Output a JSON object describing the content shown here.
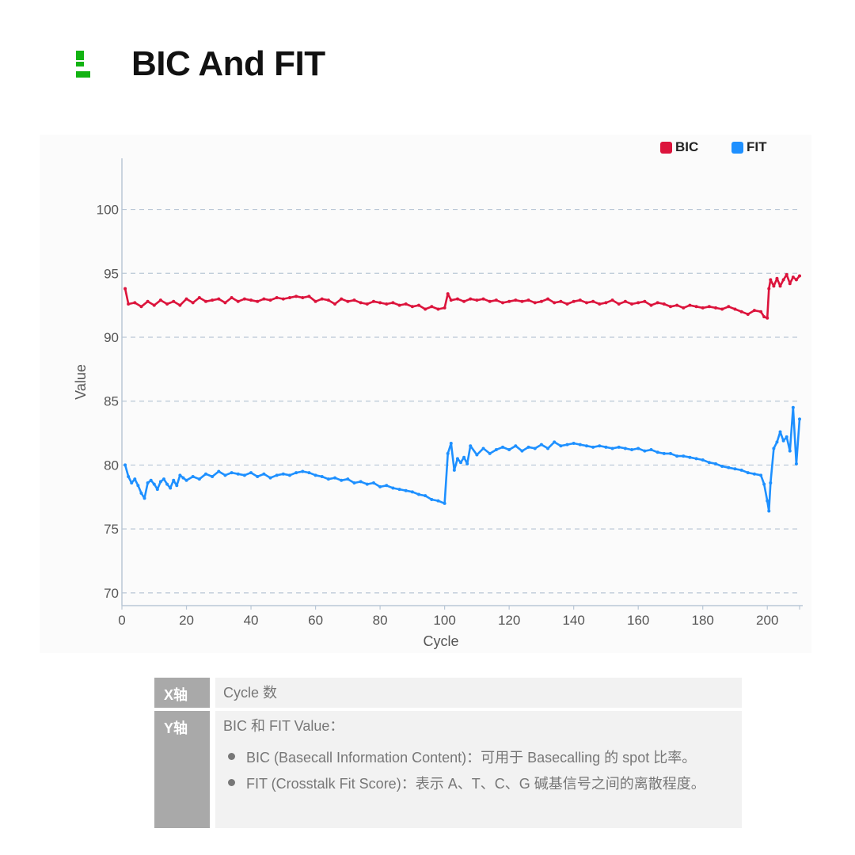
{
  "header": {
    "title": "BIC And FIT"
  },
  "legend": {
    "bic": {
      "label": "BIC",
      "color": "#dc143c"
    },
    "fit": {
      "label": "FIT",
      "color": "#1e90ff"
    }
  },
  "chart_data": {
    "type": "line",
    "xlabel": "Cycle",
    "ylabel": "Value",
    "xlim": [
      0,
      210
    ],
    "ylim": [
      69,
      104
    ],
    "xticks": [
      0,
      20,
      40,
      60,
      80,
      100,
      120,
      140,
      160,
      180,
      200
    ],
    "yticks": [
      70,
      75,
      80,
      85,
      90,
      95,
      100
    ],
    "grid": "horizontal dashed",
    "legend_position": "top-right",
    "series": [
      {
        "name": "BIC",
        "color": "#dc143c",
        "points": [
          [
            1,
            93.8
          ],
          [
            2,
            92.6
          ],
          [
            4,
            92.7
          ],
          [
            6,
            92.4
          ],
          [
            8,
            92.8
          ],
          [
            10,
            92.5
          ],
          [
            12,
            92.9
          ],
          [
            14,
            92.6
          ],
          [
            16,
            92.8
          ],
          [
            18,
            92.5
          ],
          [
            20,
            93.0
          ],
          [
            22,
            92.7
          ],
          [
            24,
            93.1
          ],
          [
            26,
            92.8
          ],
          [
            28,
            92.9
          ],
          [
            30,
            93.0
          ],
          [
            32,
            92.7
          ],
          [
            34,
            93.1
          ],
          [
            36,
            92.8
          ],
          [
            38,
            93.0
          ],
          [
            40,
            92.9
          ],
          [
            42,
            92.8
          ],
          [
            44,
            93.0
          ],
          [
            46,
            92.9
          ],
          [
            48,
            93.1
          ],
          [
            50,
            93.0
          ],
          [
            52,
            93.1
          ],
          [
            54,
            93.2
          ],
          [
            56,
            93.1
          ],
          [
            58,
            93.2
          ],
          [
            60,
            92.8
          ],
          [
            62,
            93.0
          ],
          [
            64,
            92.9
          ],
          [
            66,
            92.6
          ],
          [
            68,
            93.0
          ],
          [
            70,
            92.8
          ],
          [
            72,
            92.9
          ],
          [
            74,
            92.7
          ],
          [
            76,
            92.6
          ],
          [
            78,
            92.8
          ],
          [
            80,
            92.7
          ],
          [
            82,
            92.6
          ],
          [
            84,
            92.7
          ],
          [
            86,
            92.5
          ],
          [
            88,
            92.6
          ],
          [
            90,
            92.4
          ],
          [
            92,
            92.5
          ],
          [
            94,
            92.2
          ],
          [
            96,
            92.4
          ],
          [
            98,
            92.2
          ],
          [
            100,
            92.3
          ],
          [
            101,
            93.4
          ],
          [
            102,
            92.9
          ],
          [
            104,
            93.0
          ],
          [
            106,
            92.8
          ],
          [
            108,
            93.0
          ],
          [
            110,
            92.9
          ],
          [
            112,
            93.0
          ],
          [
            114,
            92.8
          ],
          [
            116,
            92.9
          ],
          [
            118,
            92.7
          ],
          [
            120,
            92.8
          ],
          [
            122,
            92.9
          ],
          [
            124,
            92.8
          ],
          [
            126,
            92.9
          ],
          [
            128,
            92.7
          ],
          [
            130,
            92.8
          ],
          [
            132,
            93.0
          ],
          [
            134,
            92.7
          ],
          [
            136,
            92.8
          ],
          [
            138,
            92.6
          ],
          [
            140,
            92.8
          ],
          [
            142,
            92.9
          ],
          [
            144,
            92.7
          ],
          [
            146,
            92.8
          ],
          [
            148,
            92.6
          ],
          [
            150,
            92.7
          ],
          [
            152,
            92.9
          ],
          [
            154,
            92.6
          ],
          [
            156,
            92.8
          ],
          [
            158,
            92.6
          ],
          [
            160,
            92.7
          ],
          [
            162,
            92.8
          ],
          [
            164,
            92.5
          ],
          [
            166,
            92.7
          ],
          [
            168,
            92.6
          ],
          [
            170,
            92.4
          ],
          [
            172,
            92.5
          ],
          [
            174,
            92.3
          ],
          [
            176,
            92.5
          ],
          [
            178,
            92.4
          ],
          [
            180,
            92.3
          ],
          [
            182,
            92.4
          ],
          [
            184,
            92.3
          ],
          [
            186,
            92.2
          ],
          [
            188,
            92.4
          ],
          [
            190,
            92.2
          ],
          [
            192,
            92.0
          ],
          [
            194,
            91.8
          ],
          [
            196,
            92.1
          ],
          [
            198,
            92.0
          ],
          [
            199,
            91.6
          ],
          [
            200,
            91.5
          ],
          [
            200.5,
            93.8
          ],
          [
            201,
            94.5
          ],
          [
            202,
            94.0
          ],
          [
            203,
            94.6
          ],
          [
            204,
            94.0
          ],
          [
            205,
            94.5
          ],
          [
            206,
            94.9
          ],
          [
            207,
            94.2
          ],
          [
            208,
            94.7
          ],
          [
            209,
            94.5
          ],
          [
            210,
            94.8
          ]
        ]
      },
      {
        "name": "FIT",
        "color": "#1e90ff",
        "points": [
          [
            1,
            80.0
          ],
          [
            2,
            79.1
          ],
          [
            3,
            78.6
          ],
          [
            4,
            78.9
          ],
          [
            5,
            78.4
          ],
          [
            6,
            77.8
          ],
          [
            7,
            77.4
          ],
          [
            8,
            78.6
          ],
          [
            9,
            78.8
          ],
          [
            10,
            78.5
          ],
          [
            11,
            78.1
          ],
          [
            12,
            78.7
          ],
          [
            13,
            78.9
          ],
          [
            14,
            78.5
          ],
          [
            15,
            78.2
          ],
          [
            16,
            78.8
          ],
          [
            17,
            78.4
          ],
          [
            18,
            79.2
          ],
          [
            19,
            79.0
          ],
          [
            20,
            78.8
          ],
          [
            22,
            79.1
          ],
          [
            24,
            78.9
          ],
          [
            26,
            79.3
          ],
          [
            28,
            79.1
          ],
          [
            30,
            79.5
          ],
          [
            32,
            79.2
          ],
          [
            34,
            79.4
          ],
          [
            36,
            79.3
          ],
          [
            38,
            79.2
          ],
          [
            40,
            79.4
          ],
          [
            42,
            79.1
          ],
          [
            44,
            79.3
          ],
          [
            46,
            79.0
          ],
          [
            48,
            79.2
          ],
          [
            50,
            79.3
          ],
          [
            52,
            79.2
          ],
          [
            54,
            79.4
          ],
          [
            56,
            79.5
          ],
          [
            58,
            79.4
          ],
          [
            60,
            79.2
          ],
          [
            62,
            79.1
          ],
          [
            64,
            78.9
          ],
          [
            66,
            79.0
          ],
          [
            68,
            78.8
          ],
          [
            70,
            78.9
          ],
          [
            72,
            78.6
          ],
          [
            74,
            78.7
          ],
          [
            76,
            78.5
          ],
          [
            78,
            78.6
          ],
          [
            80,
            78.3
          ],
          [
            82,
            78.4
          ],
          [
            84,
            78.2
          ],
          [
            86,
            78.1
          ],
          [
            88,
            78.0
          ],
          [
            90,
            77.9
          ],
          [
            92,
            77.7
          ],
          [
            94,
            77.6
          ],
          [
            96,
            77.3
          ],
          [
            98,
            77.2
          ],
          [
            100,
            77.0
          ],
          [
            101,
            80.9
          ],
          [
            102,
            81.7
          ],
          [
            103,
            79.6
          ],
          [
            104,
            80.5
          ],
          [
            105,
            80.2
          ],
          [
            106,
            80.6
          ],
          [
            107,
            80.1
          ],
          [
            108,
            81.5
          ],
          [
            110,
            80.8
          ],
          [
            112,
            81.3
          ],
          [
            114,
            80.9
          ],
          [
            116,
            81.2
          ],
          [
            118,
            81.4
          ],
          [
            120,
            81.2
          ],
          [
            122,
            81.5
          ],
          [
            124,
            81.1
          ],
          [
            126,
            81.4
          ],
          [
            128,
            81.3
          ],
          [
            130,
            81.6
          ],
          [
            132,
            81.3
          ],
          [
            134,
            81.8
          ],
          [
            136,
            81.5
          ],
          [
            138,
            81.6
          ],
          [
            140,
            81.7
          ],
          [
            142,
            81.6
          ],
          [
            144,
            81.5
          ],
          [
            146,
            81.4
          ],
          [
            148,
            81.5
          ],
          [
            150,
            81.4
          ],
          [
            152,
            81.3
          ],
          [
            154,
            81.4
          ],
          [
            156,
            81.3
          ],
          [
            158,
            81.2
          ],
          [
            160,
            81.3
          ],
          [
            162,
            81.1
          ],
          [
            164,
            81.2
          ],
          [
            166,
            81.0
          ],
          [
            168,
            80.9
          ],
          [
            170,
            80.9
          ],
          [
            172,
            80.7
          ],
          [
            174,
            80.7
          ],
          [
            176,
            80.6
          ],
          [
            178,
            80.5
          ],
          [
            180,
            80.4
          ],
          [
            182,
            80.2
          ],
          [
            184,
            80.1
          ],
          [
            186,
            79.9
          ],
          [
            188,
            79.8
          ],
          [
            190,
            79.7
          ],
          [
            192,
            79.6
          ],
          [
            194,
            79.4
          ],
          [
            196,
            79.3
          ],
          [
            198,
            79.2
          ],
          [
            199,
            78.5
          ],
          [
            200,
            77.2
          ],
          [
            200.5,
            76.4
          ],
          [
            201,
            78.6
          ],
          [
            202,
            81.3
          ],
          [
            203,
            81.8
          ],
          [
            204,
            82.6
          ],
          [
            205,
            81.9
          ],
          [
            206,
            82.2
          ],
          [
            207,
            81.1
          ],
          [
            208,
            84.5
          ],
          [
            209,
            80.1
          ],
          [
            210,
            83.6
          ]
        ]
      }
    ]
  },
  "info_table": {
    "x_key": "X轴",
    "x_val": "Cycle 数",
    "y_key": "Y轴",
    "y_val": "BIC 和 FIT Value：",
    "bullets": [
      "BIC (Basecall Information Content)：可用于 Basecalling 的 spot 比率。",
      "FIT (Crosstalk Fit Score)：表示 A、T、C、G 碱基信号之间的离散程度。"
    ]
  }
}
